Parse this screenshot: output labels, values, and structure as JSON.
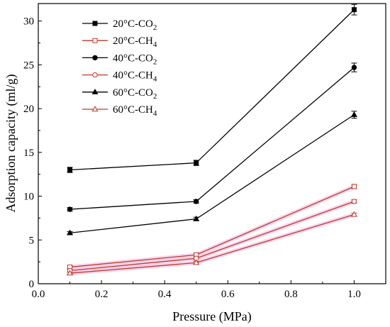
{
  "chart_data": {
    "type": "line",
    "xlabel": "Pressure (MPa)",
    "ylabel": "Adsorption capacity (ml/g)",
    "xlim": [
      0.0,
      1.1
    ],
    "ylim": [
      0,
      32
    ],
    "xticks": [
      "0.0",
      "0.2",
      "0.4",
      "0.6",
      "0.8",
      "1.0"
    ],
    "yticks": [
      "0",
      "5",
      "10",
      "15",
      "20",
      "25",
      "30"
    ],
    "x": [
      0.1,
      0.5,
      1.0
    ],
    "legend_position": "top-left",
    "grid": false,
    "series": [
      {
        "name": "20°C-CO2",
        "label_main": "20°C-CO",
        "label_sub": "2",
        "marker": "square",
        "filled": true,
        "color": "#000000",
        "values": [
          13.0,
          13.8,
          31.3
        ],
        "errors": [
          0.3,
          0.3,
          0.6
        ]
      },
      {
        "name": "20°C-CH4",
        "label_main": "20°C-CH",
        "label_sub": "4",
        "marker": "square",
        "filled": false,
        "color": "#c0392b",
        "values": [
          1.9,
          3.3,
          11.1
        ],
        "errors": [
          0.15,
          0.2,
          0.25
        ]
      },
      {
        "name": "40°C-CO2",
        "label_main": "40°C-CO",
        "label_sub": "2",
        "marker": "circle",
        "filled": true,
        "color": "#000000",
        "values": [
          8.5,
          9.4,
          24.7
        ],
        "errors": [
          0.2,
          0.2,
          0.5
        ]
      },
      {
        "name": "40°C-CH4",
        "label_main": "40°C-CH",
        "label_sub": "4",
        "marker": "circle",
        "filled": false,
        "color": "#c0392b",
        "values": [
          1.5,
          2.9,
          9.4
        ],
        "errors": [
          0.15,
          0.2,
          0.2
        ]
      },
      {
        "name": "60°C-CO2",
        "label_main": "60°C-CO",
        "label_sub": "2",
        "marker": "triangle",
        "filled": true,
        "color": "#000000",
        "values": [
          5.8,
          7.4,
          19.3
        ],
        "errors": [
          0.15,
          0.2,
          0.4
        ]
      },
      {
        "name": "60°C-CH4",
        "label_main": "60°C-CH",
        "label_sub": "4",
        "marker": "triangle",
        "filled": false,
        "color": "#c0392b",
        "values": [
          1.2,
          2.4,
          7.9
        ],
        "errors": [
          0.1,
          0.15,
          0.15
        ]
      }
    ]
  }
}
